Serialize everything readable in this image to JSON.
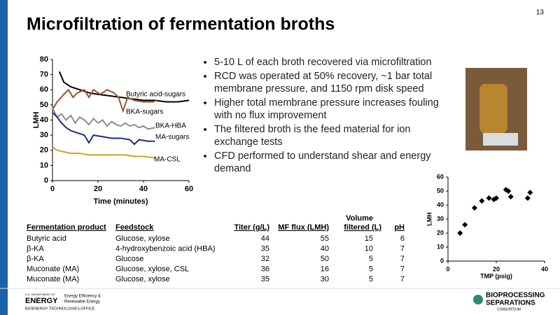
{
  "page_number": "13",
  "title": "Microfiltration of fermentation broths",
  "bullets": [
    "5-10 L of each broth recovered via microfiltration",
    "RCD was operated at 50% recovery, ~1 bar total membrane pressure, and 1150 rpm disk speed",
    "Higher total membrane pressure increases fouling with no flux improvement",
    "The filtered broth is the feed material for ion exchange  tests",
    "CFD performed to understand shear and energy demand"
  ],
  "chart_data": [
    {
      "type": "line",
      "x_label": "Time (minutes)",
      "y_label": "LMH",
      "xlim": [
        0,
        60
      ],
      "xticks": [
        0,
        20,
        40,
        60
      ],
      "ylim": [
        0,
        80
      ],
      "yticks": [
        0,
        10,
        20,
        30,
        40,
        50,
        60,
        70,
        80
      ],
      "series": [
        {
          "name": "Butyric acid-sugars",
          "color": "#000000",
          "x": [
            3,
            5,
            8,
            12,
            16,
            20,
            25,
            30,
            35,
            40,
            45,
            50,
            55,
            60
          ],
          "values": [
            72,
            65,
            62,
            60,
            58,
            57,
            56,
            55,
            54,
            53,
            53,
            52,
            52,
            53
          ]
        },
        {
          "name": "BKA-sugars",
          "color": "#a0522d",
          "x": [
            0,
            2,
            5,
            7,
            9,
            11,
            14,
            16,
            18,
            21,
            24,
            27,
            29,
            31,
            33,
            36,
            40,
            44,
            46
          ],
          "values": [
            47,
            52,
            57,
            60,
            55,
            58,
            60,
            55,
            60,
            57,
            60,
            58,
            55,
            46,
            55,
            53,
            52,
            52,
            53
          ]
        },
        {
          "name": "BKA-HBA",
          "color": "#8c8c8c",
          "x": [
            0,
            2,
            4,
            6,
            8,
            10,
            12,
            14,
            16,
            18,
            20,
            22,
            24,
            26,
            28,
            30,
            32,
            34,
            36,
            38,
            40,
            42,
            45
          ],
          "values": [
            48,
            42,
            44,
            40,
            43,
            38,
            42,
            40,
            37,
            41,
            38,
            40,
            36,
            39,
            37,
            36,
            38,
            36,
            37,
            35,
            36,
            34,
            35
          ]
        },
        {
          "name": "MA-sugars",
          "color": "#1f2f7a",
          "x": [
            0,
            2,
            4,
            6,
            8,
            10,
            14,
            16,
            18,
            22,
            26,
            30,
            34,
            36,
            38,
            42,
            45
          ],
          "values": [
            45,
            42,
            38,
            35,
            33,
            32,
            30,
            25,
            30,
            29,
            28,
            28,
            27,
            24,
            27,
            26,
            26
          ]
        },
        {
          "name": "MA-CSL",
          "color": "#c9a227",
          "x": [
            0,
            2,
            5,
            8,
            12,
            16,
            20,
            24,
            28,
            32,
            36,
            40,
            45
          ],
          "values": [
            22,
            20,
            19,
            18,
            18,
            17,
            17,
            17,
            17,
            17,
            16,
            16,
            15
          ]
        }
      ]
    },
    {
      "type": "scatter",
      "x_label": "TMP (psig)",
      "y_label": "LMH",
      "color": "#000000",
      "xlim": [
        0,
        40
      ],
      "xticks": [
        0,
        20,
        40
      ],
      "ylim": [
        0,
        60
      ],
      "yticks": [
        0,
        10,
        20,
        30,
        40,
        50,
        60
      ],
      "x": [
        5,
        7,
        11,
        14,
        17,
        19,
        20,
        24,
        25,
        26,
        33,
        34
      ],
      "values": [
        20,
        26,
        38,
        43,
        45,
        44,
        45,
        51,
        50,
        46,
        45,
        49
      ]
    }
  ],
  "table": {
    "header": [
      "Fermentation product",
      "Feedstock",
      "Titer (g/L)",
      "MF flux (LMH)",
      "Volume filtered (L)",
      "pH"
    ],
    "rows": [
      [
        "Butyric acid",
        "Glucose, xylose",
        44,
        55,
        15,
        6
      ],
      [
        "β-KA",
        "4-hydroxybenzoic acid (HBA)",
        35,
        40,
        10,
        7
      ],
      [
        "β-KA",
        "Glucose",
        32,
        50,
        5,
        7
      ],
      [
        "Muconate (MA)",
        "Glucose, xylose, CSL",
        36,
        16,
        5,
        7
      ],
      [
        "Muconate (MA)",
        "Glucose, xylose",
        35,
        30,
        5,
        7
      ]
    ]
  },
  "footer": {
    "doe_top": "U.S. DEPARTMENT OF",
    "doe": "ENERGY",
    "eere_1": "Energy Efficiency &",
    "eere_2": "Renewable Energy",
    "office": "BIOENERGY TECHNOLOGIES OFFICE",
    "bsc_1": "BIOPROCESSING",
    "bsc_2": "SEPARATIONS",
    "bsc_3": "CONSORTIUM"
  }
}
